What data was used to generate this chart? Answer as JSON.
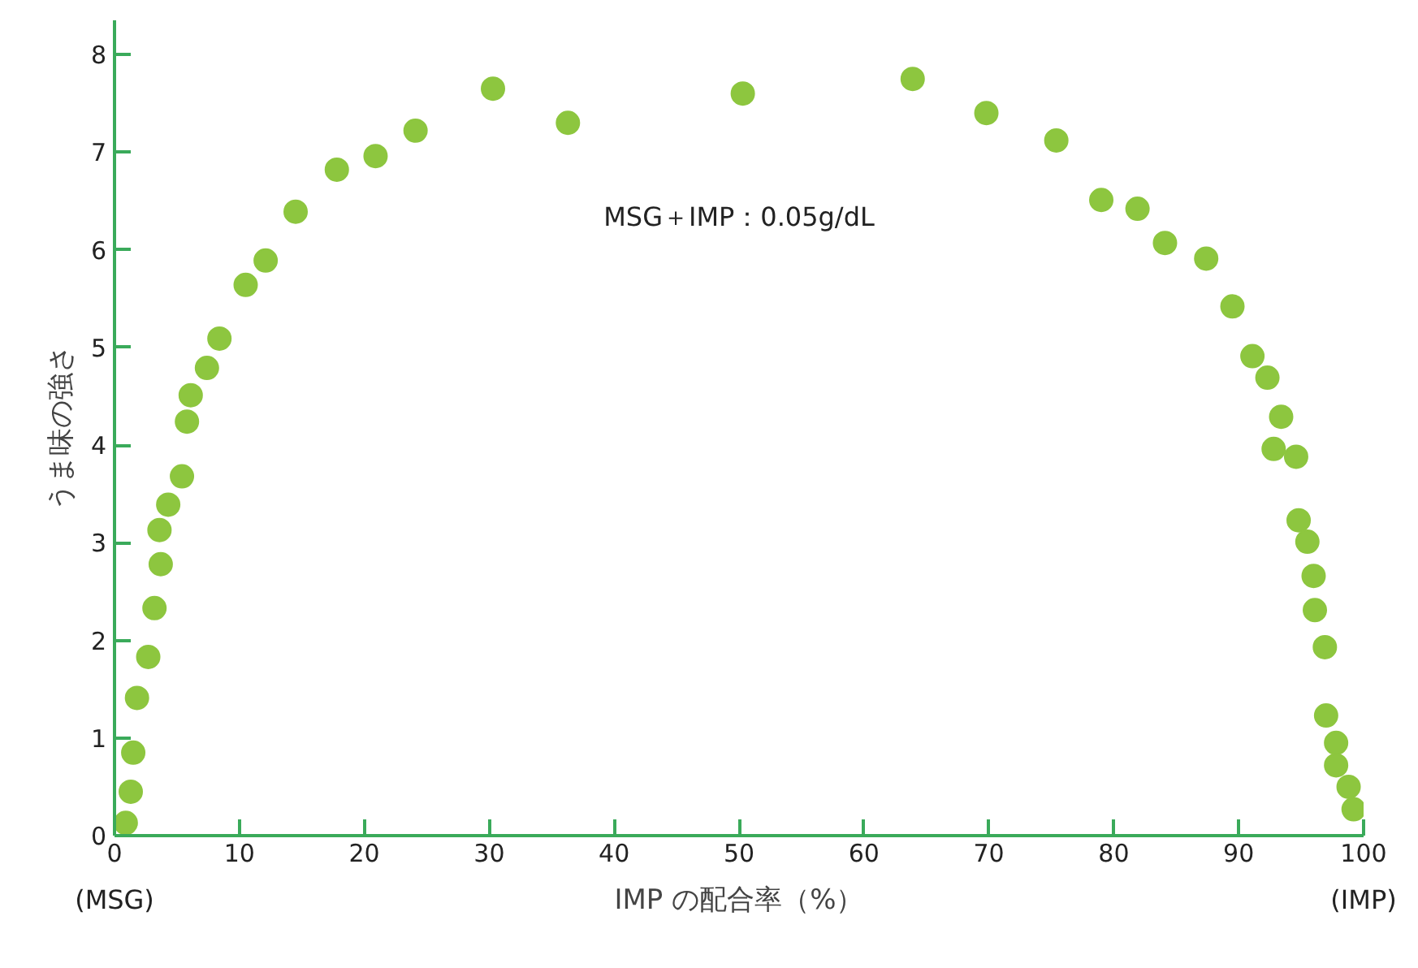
{
  "chart_data": {
    "type": "scatter",
    "xlabel": "IMP の配合率（%）",
    "ylabel": "うま味の強さ",
    "x": [
      0.9,
      1.3,
      1.5,
      1.8,
      2.7,
      3.2,
      3.7,
      3.6,
      4.3,
      5.4,
      5.8,
      6.1,
      7.4,
      8.4,
      10.5,
      12.1,
      14.5,
      17.8,
      20.9,
      24.1,
      30.3,
      36.3,
      50.3,
      63.9,
      69.8,
      75.4,
      79.0,
      81.9,
      84.1,
      87.4,
      89.5,
      91.1,
      92.3,
      93.4,
      92.8,
      94.6,
      94.8,
      95.5,
      96.0,
      96.1,
      96.9,
      97.0,
      97.8,
      97.8,
      98.8,
      99.2
    ],
    "values": [
      0.13,
      0.45,
      0.85,
      1.41,
      1.83,
      2.33,
      2.78,
      3.13,
      3.39,
      3.68,
      4.24,
      4.51,
      4.79,
      5.09,
      5.64,
      5.89,
      6.39,
      6.82,
      6.96,
      7.22,
      7.65,
      7.3,
      7.6,
      7.75,
      7.4,
      7.12,
      6.51,
      6.42,
      6.07,
      5.91,
      5.42,
      4.91,
      4.69,
      4.29,
      3.96,
      3.88,
      3.23,
      3.01,
      2.66,
      2.31,
      1.93,
      1.23,
      0.95,
      0.72,
      0.5,
      0.27
    ],
    "color": "#8dc63f",
    "marker": "circle",
    "xlim": [
      0,
      100
    ],
    "ylim": [
      0,
      8.35
    ],
    "xticks": [
      0,
      10,
      20,
      30,
      40,
      50,
      60,
      70,
      80,
      90,
      100
    ],
    "yticks": [
      0,
      1,
      2,
      3,
      4,
      5,
      6,
      7,
      8
    ],
    "grid": false,
    "annotations": [
      "MSG＋IMP：0.05g/dL",
      "(MSG)",
      "(IMP)"
    ]
  }
}
